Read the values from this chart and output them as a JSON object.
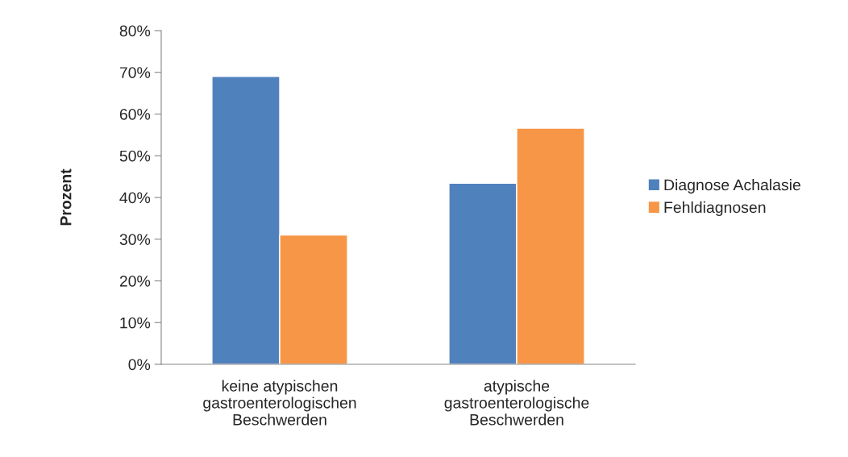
{
  "chart_data": {
    "type": "bar",
    "ylabel": "Prozent",
    "categories": [
      "keine atypischen\ngastroenterologischen\nBeschwerden",
      "atypische\ngastroenterologische\nBeschwerden"
    ],
    "series": [
      {
        "name": "Diagnose Achalasie",
        "color": "#4f81bd",
        "values": [
          69.0,
          43.4
        ]
      },
      {
        "name": "Fehldiagnosen",
        "color": "#f79646",
        "values": [
          31.0,
          56.6
        ]
      }
    ],
    "ylim": [
      0,
      80
    ],
    "yticks": [
      {
        "value": 0,
        "label": "0%"
      },
      {
        "value": 10,
        "label": "10%"
      },
      {
        "value": 20,
        "label": "20%"
      },
      {
        "value": 30,
        "label": "30%"
      },
      {
        "value": 40,
        "label": "40%"
      },
      {
        "value": 50,
        "label": "50%"
      },
      {
        "value": 60,
        "label": "60%"
      },
      {
        "value": 70,
        "label": "70%"
      },
      {
        "value": 80,
        "label": "80%"
      }
    ],
    "grid": false,
    "legend": "right"
  }
}
